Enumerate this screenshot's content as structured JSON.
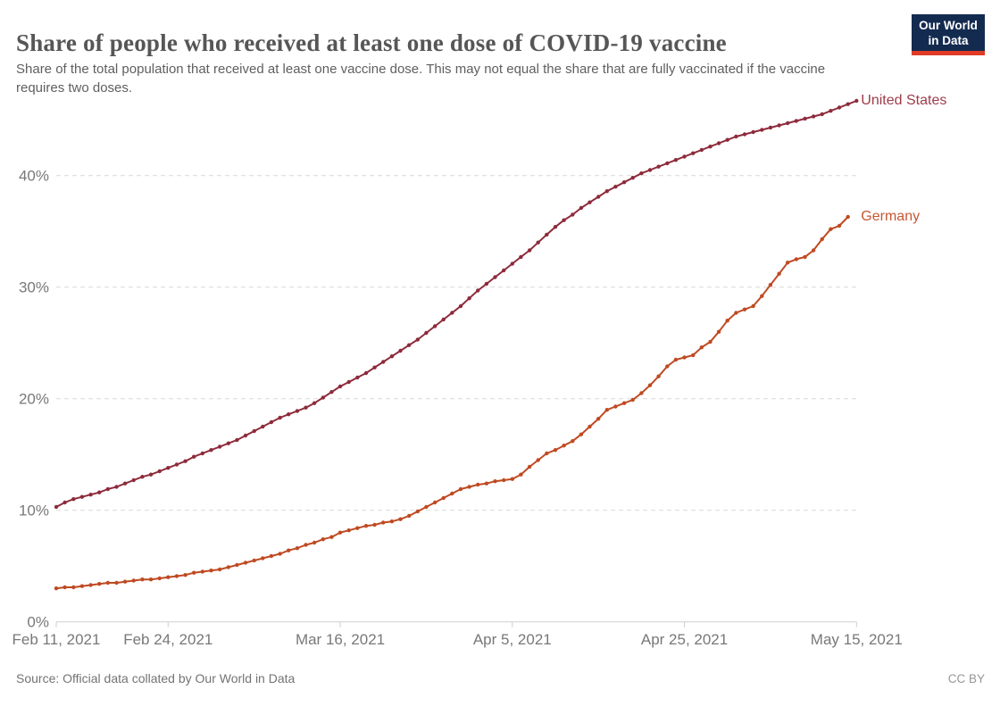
{
  "header": {
    "title": "Share of people who received at least one dose of COVID-19 vaccine",
    "subtitle": "Share of the total population that received at least one vaccine dose. This may not equal the share that are fully vaccinated if the vaccine requires two doses."
  },
  "logo": {
    "line1": "Our World",
    "line2": "in Data",
    "bg_color": "#142b50",
    "stripe_color": "#e03b26"
  },
  "chart_data": {
    "type": "line",
    "title": "Share of people who received at least one dose of COVID-19 vaccine",
    "xlabel": "",
    "ylabel": "",
    "x_unit": "day",
    "start_date": "Feb 11, 2021",
    "day_span": 93,
    "ylim": [
      0,
      47.5
    ],
    "grid": "horizontal-dashed",
    "legend": "end-of-line-labels",
    "x_ticks": [
      {
        "label": "Feb 11, 2021",
        "day": 0
      },
      {
        "label": "Feb 24, 2021",
        "day": 13
      },
      {
        "label": "Mar 16, 2021",
        "day": 33
      },
      {
        "label": "Apr 5, 2021",
        "day": 53
      },
      {
        "label": "Apr 25, 2021",
        "day": 73
      },
      {
        "label": "May 15, 2021",
        "day": 93
      }
    ],
    "y_ticks": [
      {
        "label": "0%",
        "value": 0
      },
      {
        "label": "10%",
        "value": 10
      },
      {
        "label": "20%",
        "value": 20
      },
      {
        "label": "30%",
        "value": 30
      },
      {
        "label": "40%",
        "value": 40
      }
    ],
    "series": [
      {
        "name": "United States",
        "color": "#8d2b3b",
        "label_color": "#9d3c49",
        "start_date": "Feb 11, 2021",
        "end_date": "May 15, 2021",
        "values": [
          10.3,
          10.7,
          11.0,
          11.2,
          11.4,
          11.6,
          11.9,
          12.1,
          12.4,
          12.7,
          13.0,
          13.2,
          13.5,
          13.8,
          14.1,
          14.4,
          14.8,
          15.1,
          15.4,
          15.7,
          16.0,
          16.3,
          16.7,
          17.1,
          17.5,
          17.9,
          18.3,
          18.6,
          18.9,
          19.2,
          19.6,
          20.1,
          20.6,
          21.1,
          21.5,
          21.9,
          22.3,
          22.8,
          23.3,
          23.8,
          24.3,
          24.8,
          25.3,
          25.9,
          26.5,
          27.1,
          27.7,
          28.3,
          29.0,
          29.7,
          30.3,
          30.9,
          31.5,
          32.1,
          32.7,
          33.3,
          34.0,
          34.7,
          35.4,
          36.0,
          36.5,
          37.1,
          37.6,
          38.1,
          38.6,
          39.0,
          39.4,
          39.8,
          40.2,
          40.5,
          40.8,
          41.1,
          41.4,
          41.7,
          42.0,
          42.3,
          42.6,
          42.9,
          43.2,
          43.5,
          43.7,
          43.9,
          44.1,
          44.3,
          44.5,
          44.7,
          44.9,
          45.1,
          45.3,
          45.5,
          45.8,
          46.1,
          46.4,
          46.7
        ]
      },
      {
        "name": "Germany",
        "color": "#bf4a22",
        "label_color": "#c75732",
        "start_date": "Feb 11, 2021",
        "end_date": "May 14, 2021",
        "values": [
          3.0,
          3.1,
          3.1,
          3.2,
          3.3,
          3.4,
          3.5,
          3.5,
          3.6,
          3.7,
          3.8,
          3.8,
          3.9,
          4.0,
          4.1,
          4.2,
          4.4,
          4.5,
          4.6,
          4.7,
          4.9,
          5.1,
          5.3,
          5.5,
          5.7,
          5.9,
          6.1,
          6.4,
          6.6,
          6.9,
          7.1,
          7.4,
          7.6,
          8.0,
          8.2,
          8.4,
          8.6,
          8.7,
          8.9,
          9.0,
          9.2,
          9.5,
          9.9,
          10.3,
          10.7,
          11.1,
          11.5,
          11.9,
          12.1,
          12.3,
          12.4,
          12.6,
          12.7,
          12.8,
          13.2,
          13.9,
          14.5,
          15.1,
          15.4,
          15.8,
          16.2,
          16.8,
          17.5,
          18.2,
          19.0,
          19.3,
          19.6,
          19.9,
          20.5,
          21.2,
          22.0,
          22.9,
          23.5,
          23.7,
          23.9,
          24.6,
          25.1,
          26.0,
          27.0,
          27.7,
          28.0,
          28.3,
          29.2,
          30.2,
          31.2,
          32.2,
          32.5,
          32.7,
          33.3,
          34.3,
          35.2,
          35.5,
          36.3
        ]
      }
    ]
  },
  "footer": {
    "source": "Source: Official data collated by Our World in Data",
    "license": "CC BY"
  }
}
